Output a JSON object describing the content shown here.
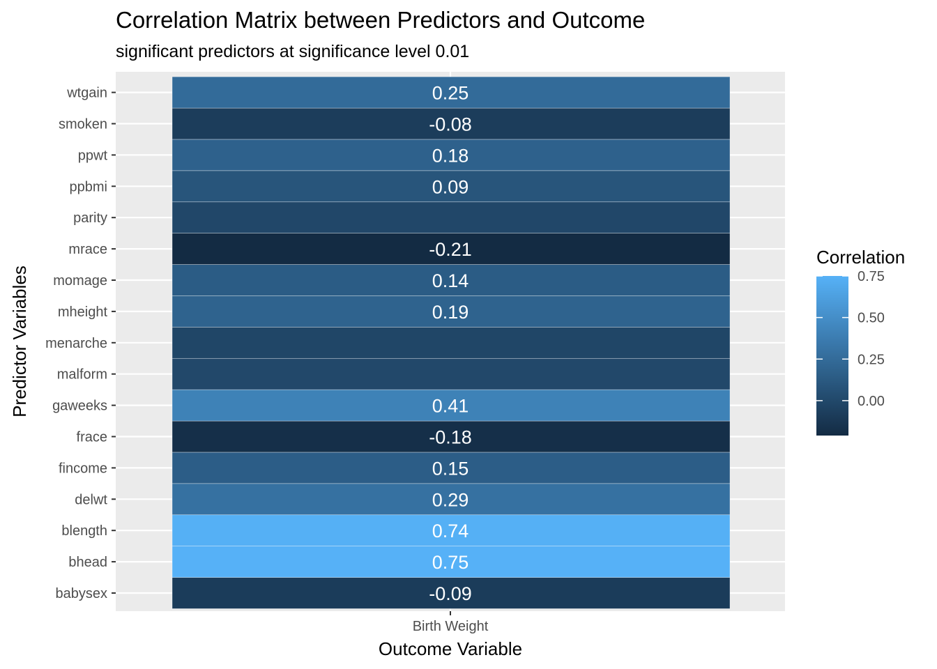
{
  "chart_data": {
    "type": "heatmap",
    "title": "Correlation Matrix between Predictors and Outcome",
    "subtitle": "significant predictors at significance level 0.01",
    "xlabel": "Outcome Variable",
    "ylabel": "Predictor Variables",
    "x_categories": [
      "Birth Weight"
    ],
    "y_categories": [
      "babysex",
      "bhead",
      "blength",
      "delwt",
      "fincome",
      "frace",
      "gaweeks",
      "malform",
      "menarche",
      "mheight",
      "momage",
      "mrace",
      "parity",
      "ppbmi",
      "ppwt",
      "smoken",
      "wtgain"
    ],
    "cells": [
      {
        "predictor": "babysex",
        "outcome": "Birth Weight",
        "value": -0.09,
        "label": "-0.09"
      },
      {
        "predictor": "bhead",
        "outcome": "Birth Weight",
        "value": 0.75,
        "label": "0.75"
      },
      {
        "predictor": "blength",
        "outcome": "Birth Weight",
        "value": 0.74,
        "label": "0.74"
      },
      {
        "predictor": "delwt",
        "outcome": "Birth Weight",
        "value": 0.29,
        "label": "0.29"
      },
      {
        "predictor": "fincome",
        "outcome": "Birth Weight",
        "value": 0.15,
        "label": "0.15"
      },
      {
        "predictor": "frace",
        "outcome": "Birth Weight",
        "value": -0.18,
        "label": "-0.18"
      },
      {
        "predictor": "gaweeks",
        "outcome": "Birth Weight",
        "value": 0.41,
        "label": "0.41"
      },
      {
        "predictor": "malform",
        "outcome": "Birth Weight",
        "value": 0.0,
        "label": ""
      },
      {
        "predictor": "menarche",
        "outcome": "Birth Weight",
        "value": -0.02,
        "label": ""
      },
      {
        "predictor": "mheight",
        "outcome": "Birth Weight",
        "value": 0.19,
        "label": "0.19"
      },
      {
        "predictor": "momage",
        "outcome": "Birth Weight",
        "value": 0.14,
        "label": "0.14"
      },
      {
        "predictor": "mrace",
        "outcome": "Birth Weight",
        "value": -0.21,
        "label": "-0.21"
      },
      {
        "predictor": "parity",
        "outcome": "Birth Weight",
        "value": -0.01,
        "label": ""
      },
      {
        "predictor": "ppbmi",
        "outcome": "Birth Weight",
        "value": 0.09,
        "label": "0.09"
      },
      {
        "predictor": "ppwt",
        "outcome": "Birth Weight",
        "value": 0.18,
        "label": "0.18"
      },
      {
        "predictor": "smoken",
        "outcome": "Birth Weight",
        "value": -0.08,
        "label": "-0.08"
      },
      {
        "predictor": "wtgain",
        "outcome": "Birth Weight",
        "value": 0.25,
        "label": "0.25"
      }
    ],
    "legend": {
      "title": "Correlation",
      "position": "right",
      "range": [
        -0.21,
        0.75
      ],
      "ticks": [
        {
          "value": 0.75,
          "label": "0.75"
        },
        {
          "value": 0.5,
          "label": "0.50"
        },
        {
          "value": 0.25,
          "label": "0.25"
        },
        {
          "value": 0.0,
          "label": "0.00"
        }
      ],
      "color_low": "#132B43",
      "color_high": "#56B1F7"
    },
    "grid": true,
    "panel_background": "#EBEBEB"
  }
}
